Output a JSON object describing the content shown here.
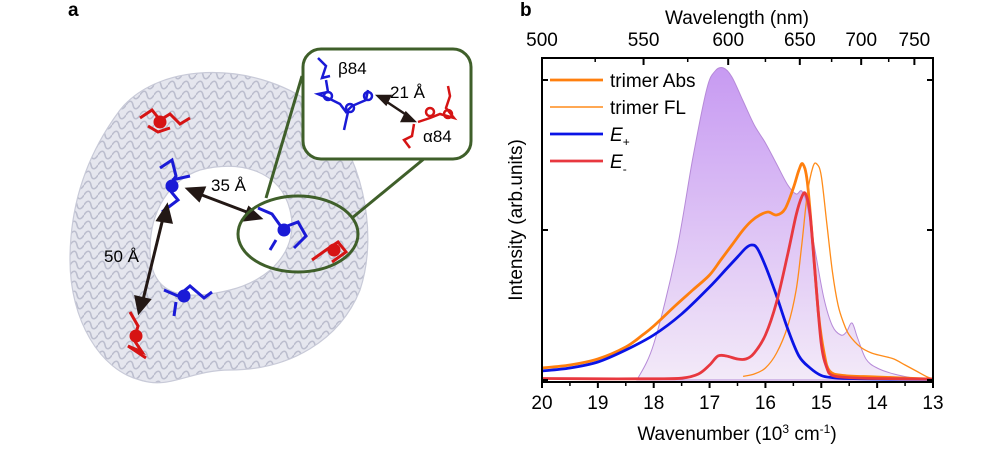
{
  "panel_a": {
    "label": "a",
    "distances": {
      "d1": "35 Å",
      "d2": "50 Å",
      "d3": "21 Å"
    },
    "inset_labels": {
      "beta": "β84",
      "alpha": "α84"
    },
    "colors": {
      "protein": "#d4d6e6",
      "beta_chromophore": "#1a1ad6",
      "alpha_chromophore": "#d61414",
      "highlight": "#3f5f2a",
      "arrow": "#231815"
    }
  },
  "panel_b": {
    "label": "b"
  },
  "chart_data": {
    "type": "line",
    "title": "",
    "xlabel": "Wavenumber (10³ cm⁻¹)",
    "xlabel_parts": {
      "base": "Wavenumber (10",
      "sup1": "3",
      "mid": " cm",
      "sup2": "-1",
      "end": ")"
    },
    "ylabel": "Intensity (arb.units)",
    "top_xlabel": "Wavelength (nm)",
    "xlim": [
      20,
      13
    ],
    "ylim": [
      0,
      1.07
    ],
    "x_ticks": [
      20,
      19,
      18,
      17,
      16,
      15,
      14,
      13
    ],
    "x_tick_labels": [
      "20",
      "19",
      "18",
      "17",
      "16",
      "15",
      "14",
      "13"
    ],
    "top_ticks_nm": [
      500,
      550,
      600,
      650,
      700,
      750
    ],
    "top_tick_labels": [
      "500",
      "550",
      "600",
      "650",
      "700",
      "750"
    ],
    "y_ticks": [
      0,
      0.5,
      1.0
    ],
    "y_tick_labels": [
      "",
      "",
      ""
    ],
    "grid": false,
    "legend_position": "top-left",
    "legend": [
      {
        "name": "trimer Abs",
        "italic": false,
        "sub": ""
      },
      {
        "name": "trimer FL",
        "italic": false,
        "sub": ""
      },
      {
        "name": "E",
        "italic": true,
        "sub": "+"
      },
      {
        "name": "E",
        "italic": true,
        "sub": "-"
      }
    ],
    "area": {
      "name": "spectral envelope (shaded)",
      "fill_top": "#c79af2",
      "fill_bottom": "#f3eaf8",
      "stroke": "#b68ad8",
      "x": [
        18.3,
        18.0,
        17.6,
        17.3,
        17.05,
        16.9,
        16.75,
        16.6,
        16.4,
        16.2,
        16.0,
        15.8,
        15.6,
        15.45,
        15.35,
        15.25,
        15.1,
        14.95,
        14.8,
        14.65,
        14.55,
        14.45,
        14.35,
        14.2,
        14.0,
        13.7,
        13.3,
        13.0
      ],
      "y": [
        0.0,
        0.12,
        0.42,
        0.74,
        0.97,
        1.03,
        1.04,
        1.01,
        0.93,
        0.85,
        0.79,
        0.72,
        0.65,
        0.62,
        0.63,
        0.58,
        0.42,
        0.27,
        0.18,
        0.15,
        0.16,
        0.19,
        0.14,
        0.07,
        0.04,
        0.02,
        0.005,
        0.0
      ]
    },
    "series": [
      {
        "name": "trimer Abs",
        "color": "#ff7f0e",
        "width": "thick",
        "x": [
          20.0,
          19.5,
          19.0,
          18.5,
          18.2,
          18.0,
          17.6,
          17.3,
          17.0,
          16.8,
          16.6,
          16.4,
          16.25,
          16.1,
          15.95,
          15.8,
          15.65,
          15.5,
          15.4,
          15.33,
          15.25,
          15.15,
          15.05,
          14.95,
          14.85,
          14.6,
          14.0,
          13.0
        ],
        "y": [
          0.04,
          0.05,
          0.07,
          0.11,
          0.15,
          0.18,
          0.25,
          0.3,
          0.35,
          0.4,
          0.45,
          0.5,
          0.53,
          0.55,
          0.56,
          0.55,
          0.57,
          0.64,
          0.7,
          0.72,
          0.66,
          0.45,
          0.22,
          0.09,
          0.03,
          0.015,
          0.01,
          0.003
        ]
      },
      {
        "name": "trimer FL",
        "color": "#ff8c1a",
        "width": "thin",
        "x": [
          16.4,
          16.2,
          16.0,
          15.8,
          15.6,
          15.45,
          15.35,
          15.25,
          15.15,
          15.08,
          15.0,
          14.9,
          14.8,
          14.7,
          14.6,
          14.5,
          14.3,
          14.1,
          13.9,
          13.7,
          13.5,
          13.3,
          13.1,
          13.0
        ],
        "y": [
          0.012,
          0.02,
          0.04,
          0.09,
          0.18,
          0.3,
          0.45,
          0.62,
          0.71,
          0.72,
          0.68,
          0.52,
          0.36,
          0.25,
          0.19,
          0.15,
          0.11,
          0.09,
          0.08,
          0.07,
          0.05,
          0.03,
          0.01,
          0.004
        ]
      },
      {
        "name": "E+",
        "color": "#0a14e6",
        "width": "thick",
        "x": [
          20.0,
          19.5,
          19.0,
          18.5,
          18.0,
          17.5,
          17.0,
          16.7,
          16.5,
          16.35,
          16.25,
          16.15,
          16.0,
          15.8,
          15.6,
          15.4,
          15.2,
          15.0,
          14.8,
          14.5,
          14.0,
          13.0
        ],
        "y": [
          0.03,
          0.04,
          0.06,
          0.1,
          0.15,
          0.22,
          0.31,
          0.37,
          0.41,
          0.44,
          0.45,
          0.44,
          0.38,
          0.28,
          0.17,
          0.08,
          0.04,
          0.015,
          0.008,
          0.005,
          0.003,
          0.002
        ]
      },
      {
        "name": "E-",
        "color": "#e8383f",
        "width": "thick",
        "x": [
          20.0,
          19.0,
          18.0,
          17.5,
          17.2,
          17.0,
          16.85,
          16.7,
          16.5,
          16.35,
          16.2,
          16.0,
          15.8,
          15.6,
          15.45,
          15.35,
          15.28,
          15.2,
          15.1,
          15.0,
          14.9,
          14.8,
          14.5,
          14.0,
          13.0
        ],
        "y": [
          0.005,
          0.004,
          0.004,
          0.006,
          0.02,
          0.05,
          0.08,
          0.08,
          0.07,
          0.07,
          0.09,
          0.15,
          0.26,
          0.42,
          0.55,
          0.61,
          0.62,
          0.55,
          0.33,
          0.12,
          0.04,
          0.015,
          0.008,
          0.005,
          0.003
        ]
      }
    ]
  }
}
